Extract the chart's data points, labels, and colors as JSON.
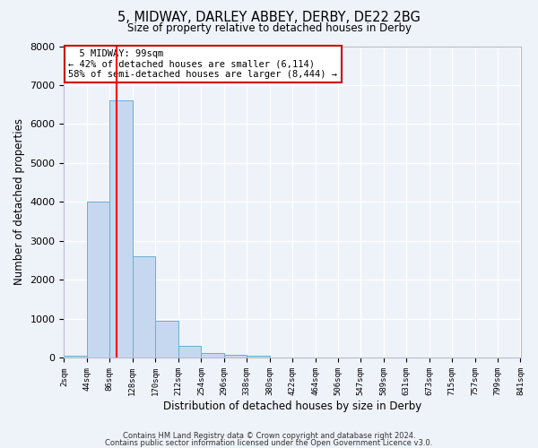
{
  "title": "5, MIDWAY, DARLEY ABBEY, DERBY, DE22 2BG",
  "subtitle": "Size of property relative to detached houses in Derby",
  "xlabel": "Distribution of detached houses by size in Derby",
  "ylabel": "Number of detached properties",
  "bar_color": "#c5d8ef",
  "bar_edge_color": "#6aaed6",
  "background_color": "#eef2f9",
  "grid_color": "#ffffff",
  "bin_edges": [
    2,
    44,
    86,
    128,
    170,
    212,
    254,
    296,
    338,
    380,
    422,
    464,
    506,
    547,
    589,
    631,
    673,
    715,
    757,
    799,
    841
  ],
  "bin_labels": [
    "2sqm",
    "44sqm",
    "86sqm",
    "128sqm",
    "170sqm",
    "212sqm",
    "254sqm",
    "296sqm",
    "338sqm",
    "380sqm",
    "422sqm",
    "464sqm",
    "506sqm",
    "547sqm",
    "589sqm",
    "631sqm",
    "673sqm",
    "715sqm",
    "757sqm",
    "799sqm",
    "841sqm"
  ],
  "bar_heights": [
    50,
    4000,
    6600,
    2600,
    950,
    320,
    130,
    90,
    50,
    0,
    0,
    0,
    0,
    0,
    0,
    0,
    0,
    0,
    0,
    0
  ],
  "red_line_x": 99,
  "annotation_title": "5 MIDWAY: 99sqm",
  "annotation_line1": "← 42% of detached houses are smaller (6,114)",
  "annotation_line2": "58% of semi-detached houses are larger (8,444) →",
  "annotation_box_color": "#ffffff",
  "annotation_box_edge": "#cc0000",
  "ylim": [
    0,
    8000
  ],
  "yticks": [
    0,
    1000,
    2000,
    3000,
    4000,
    5000,
    6000,
    7000,
    8000
  ],
  "footer1": "Contains HM Land Registry data © Crown copyright and database right 2024.",
  "footer2": "Contains public sector information licensed under the Open Government Licence v3.0."
}
